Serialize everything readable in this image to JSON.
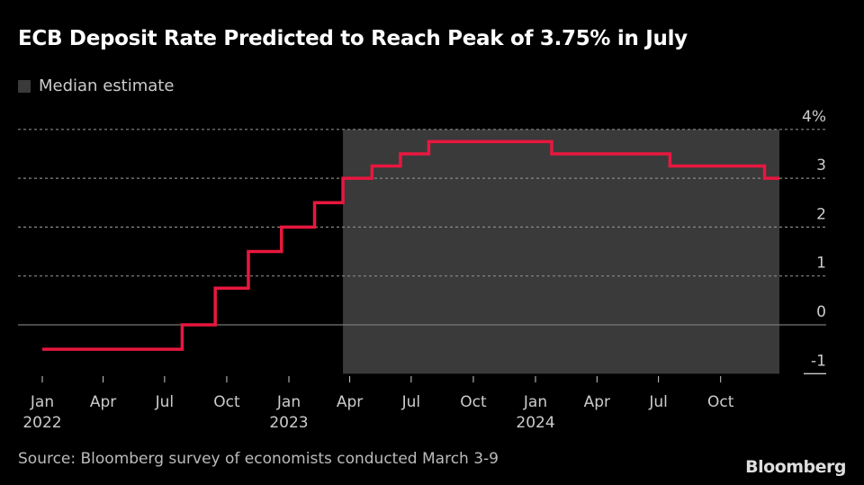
{
  "title": "ECB Deposit Rate Predicted to Reach Peak of 3.75% in July",
  "legend": {
    "label": "Median estimate",
    "color": "#3a3a3a"
  },
  "source": "Source: Bloomberg survey of economists conducted March 3-9",
  "logo": "Bloomberg",
  "chart_data": {
    "type": "line",
    "step": true,
    "title": "ECB Deposit Rate Predicted to Reach Peak of 3.75% in July",
    "line_color": "#e8173f",
    "ylim": [
      -1,
      4
    ],
    "yticks": [
      -1,
      0,
      1,
      2,
      3,
      4
    ],
    "ytick_labels": [
      "-1",
      "0",
      "1",
      "2",
      "3",
      "4%"
    ],
    "grid": true,
    "xlim": [
      "2022-01-01",
      "2024-12-31"
    ],
    "xticks": [
      {
        "date": "2022-01-01",
        "label": "Jan",
        "year": "2022"
      },
      {
        "date": "2022-04-01",
        "label": "Apr",
        "year": ""
      },
      {
        "date": "2022-07-01",
        "label": "Jul",
        "year": ""
      },
      {
        "date": "2022-10-01",
        "label": "Oct",
        "year": ""
      },
      {
        "date": "2023-01-01",
        "label": "Jan",
        "year": "2023"
      },
      {
        "date": "2023-04-01",
        "label": "Apr",
        "year": ""
      },
      {
        "date": "2023-07-01",
        "label": "Jul",
        "year": ""
      },
      {
        "date": "2023-10-01",
        "label": "Oct",
        "year": ""
      },
      {
        "date": "2024-01-01",
        "label": "Jan",
        "year": "2024"
      },
      {
        "date": "2024-04-01",
        "label": "Apr",
        "year": ""
      },
      {
        "date": "2024-07-01",
        "label": "Jul",
        "year": ""
      },
      {
        "date": "2024-10-01",
        "label": "Oct",
        "year": ""
      }
    ],
    "shaded_region": {
      "start": "2023-03-22",
      "end": "2024-12-31",
      "label": "Median estimate"
    },
    "points": [
      {
        "date": "2022-01-01",
        "value": -0.5
      },
      {
        "date": "2022-07-27",
        "value": 0
      },
      {
        "date": "2022-09-14",
        "value": 0.75
      },
      {
        "date": "2022-11-02",
        "value": 1.5
      },
      {
        "date": "2022-12-21",
        "value": 2.0
      },
      {
        "date": "2023-02-08",
        "value": 2.5
      },
      {
        "date": "2023-03-22",
        "value": 3.0
      },
      {
        "date": "2023-05-04",
        "value": 3.25
      },
      {
        "date": "2023-06-15",
        "value": 3.5
      },
      {
        "date": "2023-07-27",
        "value": 3.75
      },
      {
        "date": "2024-01-25",
        "value": 3.5
      },
      {
        "date": "2024-07-18",
        "value": 3.25
      },
      {
        "date": "2024-12-05",
        "value": 3.0
      },
      {
        "date": "2024-12-31",
        "value": 3.0
      }
    ]
  }
}
